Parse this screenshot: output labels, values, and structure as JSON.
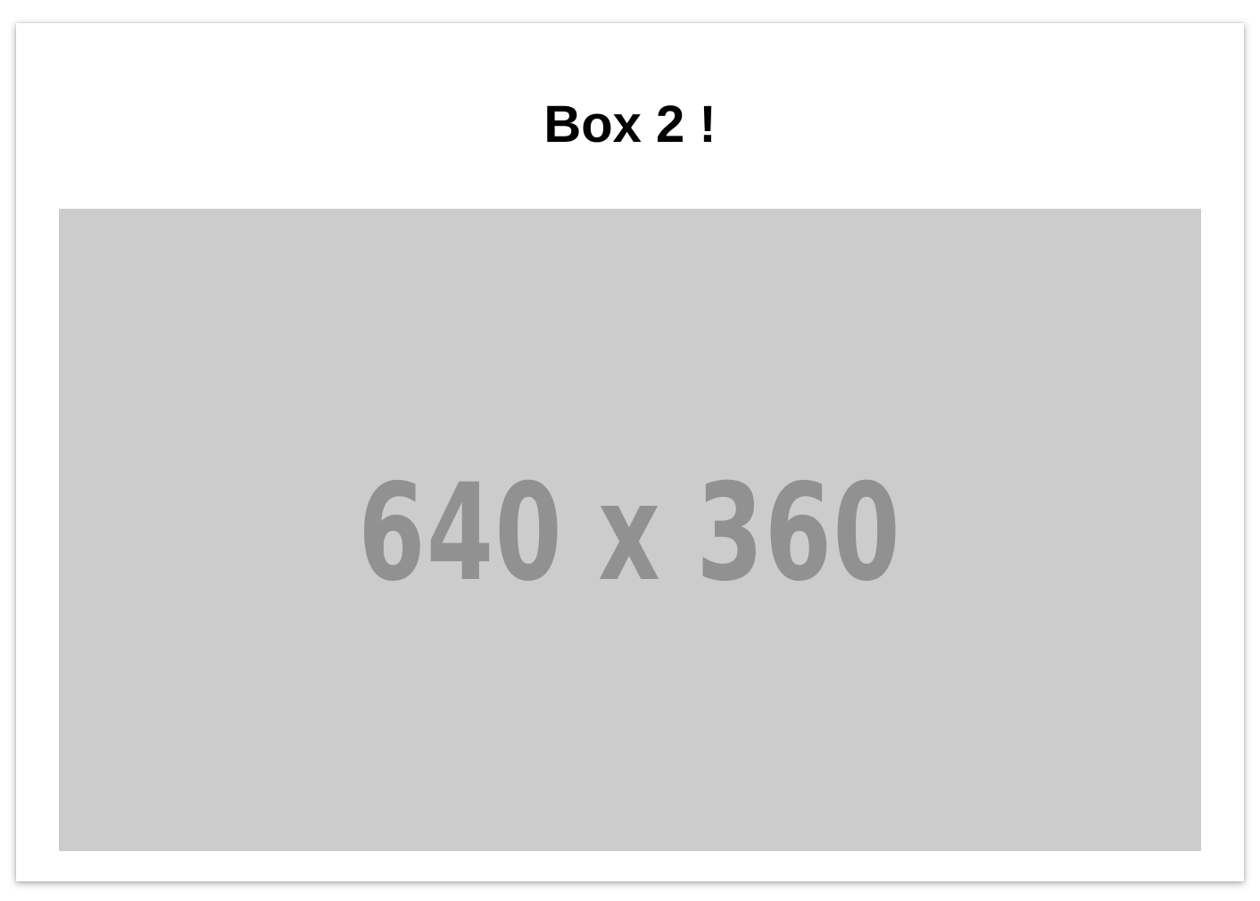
{
  "card": {
    "title": "Box 2 !"
  },
  "image_placeholder": {
    "label": "640 x 360",
    "background_color": "#cccccc",
    "text_color": "#919191"
  }
}
